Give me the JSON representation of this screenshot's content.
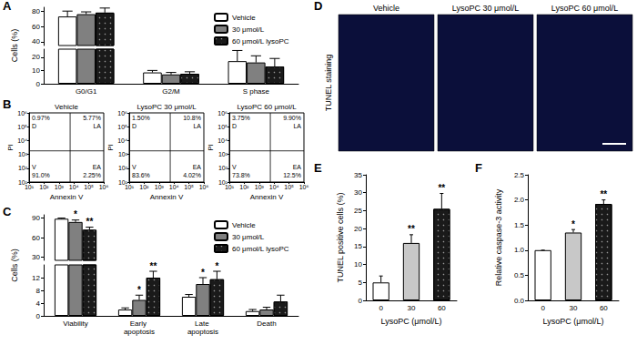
{
  "chart_data": [
    {
      "panel": "A",
      "type": "bar",
      "ylabel": "Cells (%)",
      "categories": [
        "G0/G1",
        "G2/M",
        "S phase"
      ],
      "series": [
        {
          "name": "Vehicle",
          "color": "#ffffff",
          "values": [
            73,
            8.5,
            17
          ],
          "errors": [
            7,
            1.5,
            8
          ]
        },
        {
          "name": "30 μmol/L",
          "color": "#808080",
          "values": [
            76,
            7,
            16
          ],
          "errors": [
            3,
            1.5,
            5
          ]
        },
        {
          "name": "60 μmol/L lysoPC",
          "color": "#1a1a1a",
          "values": [
            78,
            7.5,
            13
          ],
          "errors": [
            6,
            1.5,
            6
          ]
        }
      ],
      "ylim": [
        0,
        85
      ],
      "y_break": [
        26,
        35
      ],
      "yticks": [
        0,
        10,
        20,
        40,
        60,
        80
      ],
      "legend": "upper right"
    },
    {
      "panel": "B",
      "type": "scatter",
      "title": "Vehicle",
      "xlabel": "Annexin V",
      "ylabel": "PI",
      "log": true,
      "xlim": [
        10,
        1000000
      ],
      "ylim": [
        10,
        1000000
      ],
      "xticks": [
        {
          "value": 10,
          "label": "10¹"
        },
        {
          "value": 100,
          "label": "10²"
        },
        {
          "value": 1000,
          "label": "10³"
        },
        {
          "value": 10000,
          "label": "10⁴"
        },
        {
          "value": 100000,
          "label": "10⁵"
        },
        {
          "value": 1000000,
          "label": "10⁶"
        }
      ],
      "yticks": [
        {
          "value": 10,
          "label": "10¹"
        },
        {
          "value": 100,
          "label": "10²"
        },
        {
          "value": 1000,
          "label": "10³"
        },
        {
          "value": 10000,
          "label": "10⁴"
        },
        {
          "value": 100000,
          "label": "10⁵"
        },
        {
          "value": 1000000,
          "label": "10⁶"
        }
      ],
      "gates": {
        "x": 5600,
        "y": 1800
      },
      "quadrants": [
        {
          "name": "D",
          "value": 0.97,
          "label": "0.97%"
        },
        {
          "name": "LA",
          "value": 5.77,
          "label": "5.77%"
        },
        {
          "name": "V",
          "value": 91.0,
          "label": "91.0%"
        },
        {
          "name": "EA",
          "value": 2.25,
          "label": "2.25%"
        }
      ]
    },
    {
      "type": "scatter",
      "title": "LysoPC 30 μmol/L",
      "xlabel": "Annexin V",
      "ylabel": "PI",
      "log": true,
      "xlim": [
        10,
        1000000
      ],
      "ylim": [
        10,
        1000000
      ],
      "xticks": [
        {
          "value": 10,
          "label": "10¹"
        },
        {
          "value": 100,
          "label": "10²"
        },
        {
          "value": 1000,
          "label": "10³"
        },
        {
          "value": 10000,
          "label": "10⁴"
        },
        {
          "value": 100000,
          "label": "10⁵"
        },
        {
          "value": 1000000,
          "label": "10⁶"
        }
      ],
      "yticks": [
        {
          "value": 10,
          "label": "10¹"
        },
        {
          "value": 100,
          "label": "10²"
        },
        {
          "value": 1000,
          "label": "10³"
        },
        {
          "value": 10000,
          "label": "10⁴"
        },
        {
          "value": 100000,
          "label": "10⁵"
        },
        {
          "value": 1000000,
          "label": "10⁶"
        }
      ],
      "gates": {
        "x": 5600,
        "y": 1800
      },
      "quadrants": [
        {
          "name": "D",
          "value": 1.5,
          "label": "1.50%"
        },
        {
          "name": "LA",
          "value": 10.8,
          "label": "10.8%"
        },
        {
          "name": "V",
          "value": 83.6,
          "label": "83.6%"
        },
        {
          "name": "EA",
          "value": 4.02,
          "label": "4.02%"
        }
      ]
    },
    {
      "type": "scatter",
      "title": "LysoPC 60 μmol/L",
      "xlabel": "Annexin V",
      "ylabel": "PI",
      "log": true,
      "xlim": [
        10,
        1000000
      ],
      "ylim": [
        10,
        1000000
      ],
      "xticks": [
        {
          "value": 10,
          "label": "10¹"
        },
        {
          "value": 100,
          "label": "10²"
        },
        {
          "value": 1000,
          "label": "10³"
        },
        {
          "value": 10000,
          "label": "10⁴"
        },
        {
          "value": 100000,
          "label": "10⁵"
        },
        {
          "value": 1000000,
          "label": "10⁶"
        }
      ],
      "yticks": [
        {
          "value": 10,
          "label": "10¹"
        },
        {
          "value": 100,
          "label": "10²"
        },
        {
          "value": 1000,
          "label": "10³"
        },
        {
          "value": 10000,
          "label": "10⁴"
        },
        {
          "value": 100000,
          "label": "10⁵"
        },
        {
          "value": 1000000,
          "label": "10⁶"
        }
      ],
      "gates": {
        "x": 5600,
        "y": 1800
      },
      "quadrants": [
        {
          "name": "D",
          "value": 3.75,
          "label": "3.75%"
        },
        {
          "name": "LA",
          "value": 9.9,
          "label": "9.90%"
        },
        {
          "name": "V",
          "value": 73.8,
          "label": "73.8%"
        },
        {
          "name": "EA",
          "value": 12.5,
          "label": "12.5%"
        }
      ]
    },
    {
      "panel": "C",
      "type": "bar",
      "ylabel": "Cells (%)",
      "categories": [
        "Viability",
        "Early apoptosis",
        "Late apoptosis",
        "Death"
      ],
      "series": [
        {
          "name": "Vehicle",
          "color": "#ffffff",
          "values": [
            89,
            2,
            6,
            1.5
          ],
          "errors": [
            1,
            0.5,
            0.7,
            0.5
          ],
          "significance": [
            null,
            null,
            null,
            null
          ]
        },
        {
          "name": "30 μmol/L",
          "color": "#808080",
          "values": [
            84,
            5,
            10,
            2
          ],
          "errors": [
            3,
            1.5,
            2,
            0.7
          ],
          "significance": [
            "*",
            "*",
            "*",
            null
          ]
        },
        {
          "name": "60 μmol/L lysoPC",
          "color": "#1a1a1a",
          "values": [
            72,
            12,
            11.5,
            4.5
          ],
          "errors": [
            4,
            2,
            2.5,
            2
          ],
          "significance": [
            "**",
            "**",
            "*",
            null
          ]
        }
      ],
      "ylim": [
        0,
        95
      ],
      "y_break": [
        16,
        25
      ],
      "yticks": [
        0,
        4,
        8,
        12,
        30,
        60,
        90
      ],
      "legend": "upper right"
    },
    {
      "panel": "E",
      "type": "bar",
      "xlabel": "LysoPC (μmol/L)",
      "ylabel": "TUNEL positive cells (%)",
      "categories": [
        "0",
        "30",
        "60"
      ],
      "values": [
        5,
        16,
        25.5
      ],
      "errors": [
        1.8,
        2.3,
        4.3
      ],
      "significance": [
        null,
        "**",
        "**"
      ],
      "colors": [
        "#ffffff",
        "#c8c8c8",
        "#1a1a1a"
      ],
      "ylim": [
        0,
        35
      ],
      "yticks": [
        0,
        5,
        10,
        15,
        20,
        25,
        30,
        35
      ]
    },
    {
      "panel": "F",
      "type": "bar",
      "xlabel": "LysoPC (μmol/L)",
      "ylabel": "Relative caspase-3 activity",
      "categories": [
        "0",
        "30",
        "60"
      ],
      "values": [
        1,
        1.35,
        1.92
      ],
      "errors": [
        0,
        0.06,
        0.08
      ],
      "significance": [
        null,
        "*",
        "**"
      ],
      "colors": [
        "#ffffff",
        "#c8c8c8",
        "#1a1a1a"
      ],
      "ylim": [
        0,
        2.5
      ],
      "yticks": [
        {
          "value": 0,
          "label": "0.0"
        },
        {
          "value": 0.5,
          "label": "0.5"
        },
        {
          "value": 1,
          "label": "1.0"
        },
        {
          "value": 1.5,
          "label": "1.5"
        },
        {
          "value": 2,
          "label": "2.0"
        },
        {
          "value": 2.5,
          "label": "2.5"
        }
      ]
    }
  ],
  "image_panel": {
    "panel": "D",
    "ylabel": "TUNEL staining",
    "titles": [
      "Vehicle",
      "LysoPC 30 μmol/L",
      "LysoPC 60 μmol/L"
    ]
  }
}
